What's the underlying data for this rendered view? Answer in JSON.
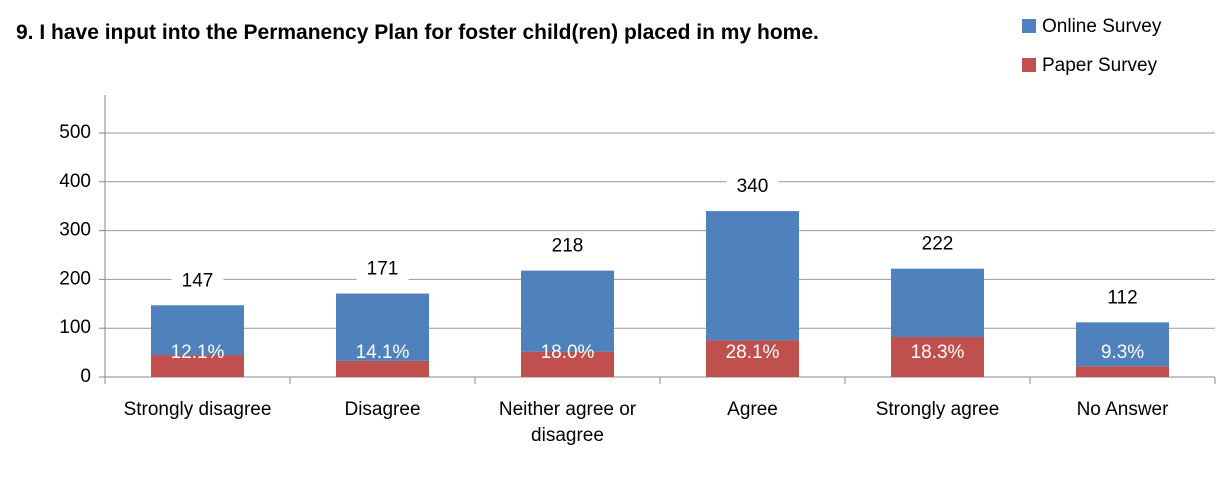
{
  "chart_data": {
    "type": "stacked_bar",
    "title": "9. I have input into the Permanency Plan for foster child(ren) placed in my home.",
    "categories": [
      "Strongly disagree",
      "Disagree",
      "Neither agree or disagree",
      "Agree",
      "Strongly agree",
      "No Answer"
    ],
    "series": [
      {
        "name": "Paper Survey",
        "color": "#c0504d",
        "values": [
          45,
          33,
          52,
          75,
          82,
          22
        ]
      },
      {
        "name": "Online Survey",
        "color": "#4f81bd",
        "values": [
          102,
          138,
          166,
          265,
          140,
          90
        ]
      }
    ],
    "totals": {
      "values": [
        147,
        171,
        218,
        340,
        222,
        112
      ]
    },
    "shares": {
      "values": [
        12.1,
        14.1,
        18.0,
        28.1,
        18.3,
        9.3
      ],
      "value_labels": [
        "12.1%",
        "14.1%",
        "18.0%",
        "28.1%",
        "18.3%",
        "9.3%"
      ]
    },
    "ylim": [
      0,
      500
    ],
    "yticks": [
      0,
      100,
      200,
      300,
      400,
      500
    ],
    "grid": true,
    "legend": "top-right"
  }
}
